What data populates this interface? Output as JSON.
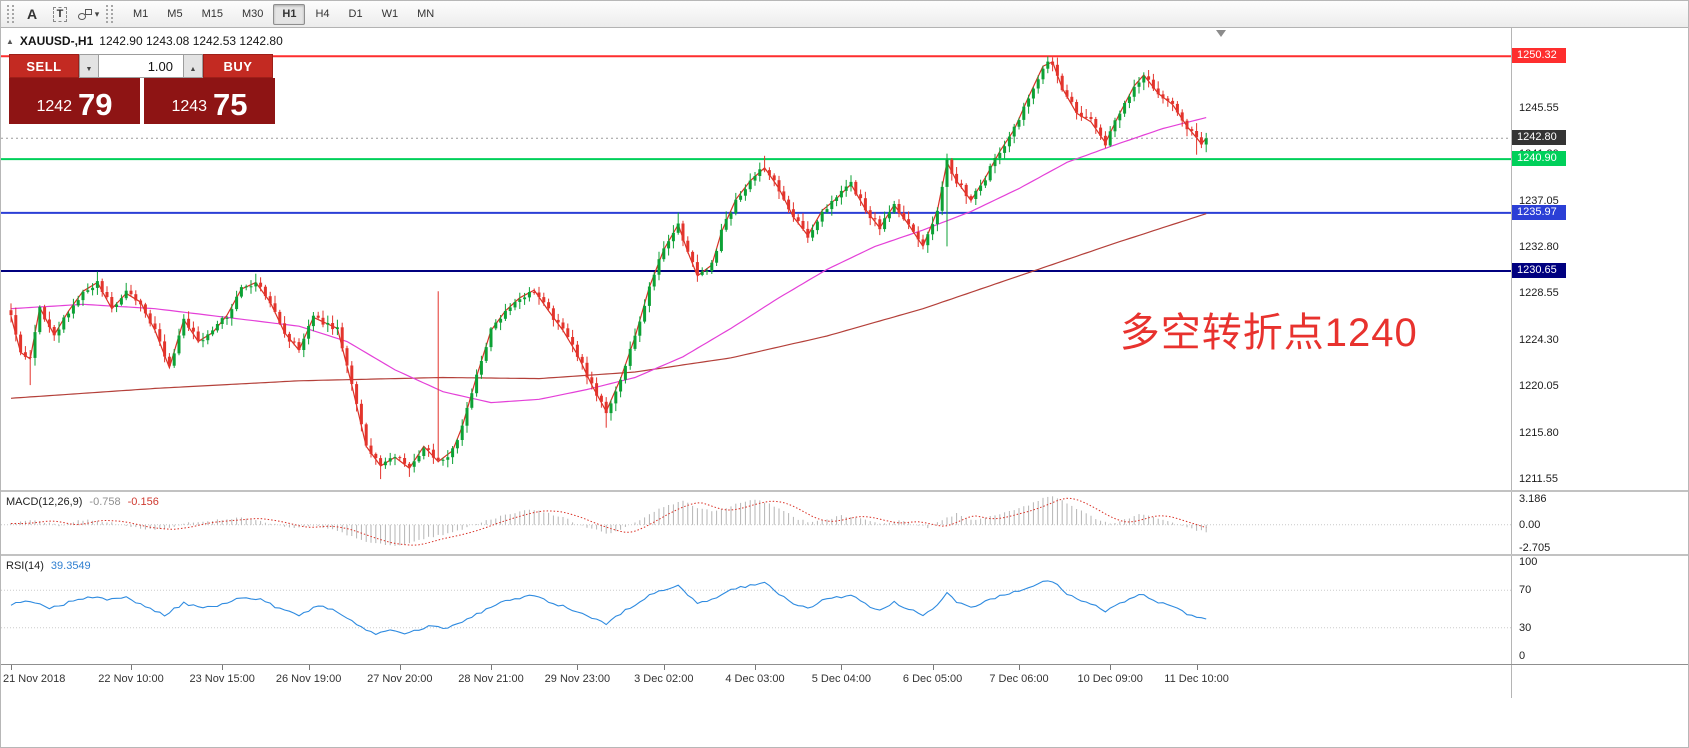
{
  "toolbar": {
    "tools": [
      {
        "name": "toolbar-grip"
      },
      {
        "name": "text-annotation-tool",
        "label": "A"
      },
      {
        "name": "text-label-tool",
        "label": "T"
      },
      {
        "name": "shapes-tool"
      }
    ],
    "timeframes": [
      {
        "label": "M1",
        "active": false
      },
      {
        "label": "M5",
        "active": false
      },
      {
        "label": "M15",
        "active": false
      },
      {
        "label": "M30",
        "active": false
      },
      {
        "label": "H1",
        "active": true
      },
      {
        "label": "H4",
        "active": false
      },
      {
        "label": "D1",
        "active": false
      },
      {
        "label": "W1",
        "active": false
      },
      {
        "label": "MN",
        "active": false
      }
    ]
  },
  "header": {
    "collapse_glyph": "▲",
    "symbol": "XAUUSD-,H1",
    "ohlc": "1242.90 1243.08 1242.53 1242.80"
  },
  "trade_panel": {
    "sell_label": "SELL",
    "buy_label": "BUY",
    "volume": "1.00",
    "bid_main": "1242",
    "bid_pips": "79",
    "ask_main": "1243",
    "ask_pips": "75"
  },
  "chart_data": {
    "type": "candlestick",
    "symbol": "XAUUSD",
    "timeframe": "H1",
    "bars": 250,
    "last_close": 1242.8,
    "ylim": [
      1210.6,
      1252.9
    ],
    "y_axis_labels": [
      "1245.55",
      "1241.30",
      "1237.05",
      "1232.80",
      "1228.55",
      "1224.30",
      "1220.05",
      "1215.80",
      "1211.55"
    ],
    "colors": {
      "up": "#0ca135",
      "down": "#e3342c"
    },
    "close_waypoints": [
      [
        0,
        1226.5
      ],
      [
        2,
        1223.2
      ],
      [
        4,
        1222.6
      ],
      [
        6,
        1227.3
      ],
      [
        9,
        1224.8
      ],
      [
        12,
        1227.0
      ],
      [
        15,
        1228.8
      ],
      [
        18,
        1229.6
      ],
      [
        21,
        1227.2
      ],
      [
        24,
        1228.6
      ],
      [
        27,
        1227.8
      ],
      [
        30,
        1225.2
      ],
      [
        33,
        1221.8
      ],
      [
        36,
        1226.2
      ],
      [
        39,
        1224.2
      ],
      [
        42,
        1225.0
      ],
      [
        45,
        1226.6
      ],
      [
        48,
        1229.0
      ],
      [
        51,
        1229.6
      ],
      [
        54,
        1227.8
      ],
      [
        57,
        1225.0
      ],
      [
        60,
        1223.4
      ],
      [
        63,
        1226.4
      ],
      [
        66,
        1225.8
      ],
      [
        68,
        1225.4
      ],
      [
        71,
        1220.2
      ],
      [
        74,
        1214.6
      ],
      [
        77,
        1212.8
      ],
      [
        80,
        1213.6
      ],
      [
        83,
        1212.6
      ],
      [
        86,
        1214.6
      ],
      [
        89,
        1213.2
      ],
      [
        92,
        1214.2
      ],
      [
        94,
        1216.4
      ],
      [
        97,
        1221.0
      ],
      [
        100,
        1225.2
      ],
      [
        103,
        1227.0
      ],
      [
        106,
        1228.2
      ],
      [
        109,
        1228.9
      ],
      [
        112,
        1227.0
      ],
      [
        115,
        1225.2
      ],
      [
        118,
        1223.0
      ],
      [
        121,
        1220.2
      ],
      [
        124,
        1217.8
      ],
      [
        127,
        1220.8
      ],
      [
        130,
        1224.6
      ],
      [
        133,
        1229.2
      ],
      [
        136,
        1232.6
      ],
      [
        139,
        1234.9
      ],
      [
        141,
        1232.4
      ],
      [
        143,
        1230.2
      ],
      [
        146,
        1231.2
      ],
      [
        148,
        1234.2
      ],
      [
        151,
        1237.2
      ],
      [
        154,
        1238.9
      ],
      [
        157,
        1240.1
      ],
      [
        160,
        1238.2
      ],
      [
        163,
        1235.6
      ],
      [
        166,
        1233.9
      ],
      [
        169,
        1236.2
      ],
      [
        172,
        1237.3
      ],
      [
        175,
        1238.6
      ],
      [
        178,
        1236.3
      ],
      [
        181,
        1234.6
      ],
      [
        184,
        1236.7
      ],
      [
        187,
        1234.9
      ],
      [
        190,
        1232.9
      ],
      [
        193,
        1236.2
      ],
      [
        195,
        1240.6
      ],
      [
        197,
        1238.9
      ],
      [
        200,
        1237.1
      ],
      [
        203,
        1239.2
      ],
      [
        206,
        1241.6
      ],
      [
        209,
        1243.6
      ],
      [
        212,
        1246.6
      ],
      [
        215,
        1249.4
      ],
      [
        217,
        1249.8
      ],
      [
        219,
        1247.4
      ],
      [
        222,
        1245.1
      ],
      [
        225,
        1244.3
      ],
      [
        228,
        1242.4
      ],
      [
        231,
        1245.1
      ],
      [
        234,
        1247.6
      ],
      [
        236,
        1248.6
      ],
      [
        239,
        1246.9
      ],
      [
        242,
        1245.9
      ],
      [
        245,
        1243.9
      ],
      [
        248,
        1242.3
      ],
      [
        249,
        1242.8
      ]
    ],
    "spikes": {
      "4": {
        "l": 1220.2
      },
      "18": {
        "h": 1230.6
      },
      "51": {
        "h": 1230.4
      },
      "77": {
        "l": 1211.6
      },
      "83": {
        "l": 1211.8
      },
      "89": {
        "h": 1228.8
      },
      "124": {
        "l": 1216.3
      },
      "139": {
        "h": 1236.0
      },
      "157": {
        "h": 1241.2
      },
      "195": {
        "h": 1241.4,
        "l": 1232.9
      },
      "216": {
        "h": 1250.3
      },
      "228": {
        "l": 1241.9
      },
      "247": {
        "l": 1241.3
      }
    },
    "moving_averages": [
      {
        "name": "ma-slow-line",
        "color": "#b4403a",
        "waypoints": [
          [
            0,
            1219.0
          ],
          [
            30,
            1219.9
          ],
          [
            60,
            1220.6
          ],
          [
            90,
            1220.9
          ],
          [
            110,
            1220.8
          ],
          [
            130,
            1221.4
          ],
          [
            150,
            1222.7
          ],
          [
            170,
            1224.7
          ],
          [
            190,
            1227.2
          ],
          [
            210,
            1230.2
          ],
          [
            230,
            1233.2
          ],
          [
            249,
            1235.9
          ]
        ]
      },
      {
        "name": "ma-mid-line",
        "color": "#e440d8",
        "waypoints": [
          [
            0,
            1227.2
          ],
          [
            15,
            1227.6
          ],
          [
            30,
            1227.2
          ],
          [
            45,
            1226.4
          ],
          [
            60,
            1225.6
          ],
          [
            70,
            1224.2
          ],
          [
            80,
            1221.6
          ],
          [
            90,
            1219.6
          ],
          [
            100,
            1218.6
          ],
          [
            110,
            1218.9
          ],
          [
            120,
            1219.8
          ],
          [
            130,
            1220.9
          ],
          [
            140,
            1222.8
          ],
          [
            150,
            1225.4
          ],
          [
            160,
            1228.2
          ],
          [
            170,
            1230.8
          ],
          [
            180,
            1232.9
          ],
          [
            190,
            1234.4
          ],
          [
            200,
            1236.1
          ],
          [
            210,
            1238.2
          ],
          [
            220,
            1240.6
          ],
          [
            230,
            1242.2
          ],
          [
            240,
            1243.7
          ],
          [
            249,
            1244.7
          ]
        ]
      },
      {
        "name": "ma-fast-line",
        "color": "#d93025",
        "use_close": true
      }
    ],
    "hlines": [
      {
        "price": 1250.32,
        "label": "1250.32",
        "color": "#fe2e2e"
      },
      {
        "price": 1240.9,
        "label": "1240.90",
        "color": "#00d05a"
      },
      {
        "price": 1235.97,
        "label": "1235.97",
        "color": "#2b3fd6"
      },
      {
        "price": 1230.65,
        "label": "1230.65",
        "color": "#00007f"
      }
    ],
    "bid_line": {
      "price": 1242.8,
      "label": "1242.80",
      "line_color": "#9b9b9b",
      "badge_bg": "#343434"
    },
    "annotation": {
      "text": "多空转折点1240",
      "color": "#e8322e",
      "bar": 231,
      "price": 1226.0
    },
    "shift_marker_bar": 251,
    "time_axis": [
      {
        "label": "21 Nov 2018",
        "bar": 0
      },
      {
        "label": "22 Nov 10:00",
        "bar": 25
      },
      {
        "label": "23 Nov 15:00",
        "bar": 44
      },
      {
        "label": "26 Nov 19:00",
        "bar": 62
      },
      {
        "label": "27 Nov 20:00",
        "bar": 81
      },
      {
        "label": "28 Nov 21:00",
        "bar": 100
      },
      {
        "label": "29 Nov 23:00",
        "bar": 118
      },
      {
        "label": "3 Dec 02:00",
        "bar": 136
      },
      {
        "label": "4 Dec 03:00",
        "bar": 155
      },
      {
        "label": "5 Dec 04:00",
        "bar": 173
      },
      {
        "label": "6 Dec 05:00",
        "bar": 192
      },
      {
        "label": "7 Dec 06:00",
        "bar": 210
      },
      {
        "label": "10 Dec 09:00",
        "bar": 229
      },
      {
        "label": "11 Dec 10:00",
        "bar": 247
      }
    ]
  },
  "macd": {
    "label": "MACD(12,26,9)",
    "value_main": "-0.758",
    "value_signal": "-0.156",
    "axis_labels": [
      "3.186",
      "0.00",
      "-2.705"
    ],
    "axis_values": [
      3.186,
      0,
      -2.705
    ],
    "range": [
      -3.2,
      3.6
    ],
    "hist_color": "#b5b5b5",
    "signal_color": "#d93025",
    "waypoints": [
      [
        0,
        0.15
      ],
      [
        5,
        0.5
      ],
      [
        10,
        -0.1
      ],
      [
        15,
        0.55
      ],
      [
        20,
        0.35
      ],
      [
        25,
        -0.3
      ],
      [
        30,
        -0.55
      ],
      [
        34,
        -0.2
      ],
      [
        38,
        0.3
      ],
      [
        43,
        0.5
      ],
      [
        48,
        0.75
      ],
      [
        53,
        0.3
      ],
      [
        58,
        -0.35
      ],
      [
        63,
        -0.1
      ],
      [
        67,
        -0.5
      ],
      [
        71,
        -1.3
      ],
      [
        76,
        -2.1
      ],
      [
        81,
        -2.3
      ],
      [
        86,
        -1.5
      ],
      [
        90,
        -1.1
      ],
      [
        94,
        -0.5
      ],
      [
        98,
        0.3
      ],
      [
        103,
        1.1
      ],
      [
        107,
        1.6
      ],
      [
        111,
        1.45
      ],
      [
        115,
        0.8
      ],
      [
        119,
        -0.1
      ],
      [
        122,
        -0.6
      ],
      [
        125,
        -1.0
      ],
      [
        128,
        -0.3
      ],
      [
        131,
        0.6
      ],
      [
        134,
        1.5
      ],
      [
        137,
        2.2
      ],
      [
        140,
        2.6
      ],
      [
        143,
        1.8
      ],
      [
        146,
        1.5
      ],
      [
        149,
        1.9
      ],
      [
        152,
        2.4
      ],
      [
        155,
        2.7
      ],
      [
        158,
        2.35
      ],
      [
        161,
        1.5
      ],
      [
        164,
        0.6
      ],
      [
        167,
        0.25
      ],
      [
        170,
        0.6
      ],
      [
        173,
        1.0
      ],
      [
        176,
        0.8
      ],
      [
        179,
        0.35
      ],
      [
        182,
        0.1
      ],
      [
        185,
        0.45
      ],
      [
        188,
        0.05
      ],
      [
        191,
        -0.3
      ],
      [
        194,
        0.5
      ],
      [
        197,
        1.2
      ],
      [
        200,
        0.55
      ],
      [
        203,
        0.75
      ],
      [
        206,
        1.2
      ],
      [
        209,
        1.6
      ],
      [
        212,
        2.2
      ],
      [
        215,
        2.9
      ],
      [
        217,
        3.05
      ],
      [
        220,
        2.4
      ],
      [
        223,
        1.5
      ],
      [
        226,
        0.6
      ],
      [
        229,
        0.15
      ],
      [
        232,
        0.6
      ],
      [
        235,
        1.1
      ],
      [
        238,
        0.9
      ],
      [
        241,
        0.35
      ],
      [
        244,
        -0.15
      ],
      [
        247,
        -0.6
      ],
      [
        249,
        -0.758
      ]
    ]
  },
  "rsi": {
    "label": "RSI(14)",
    "value": "39.3549",
    "line_color": "#2f8be0",
    "levels": [
      70,
      30
    ],
    "axis_labels": [
      "100",
      "70",
      "30",
      "0"
    ],
    "axis_values": [
      100,
      70,
      30,
      0
    ],
    "waypoints": [
      [
        0,
        55
      ],
      [
        4,
        59
      ],
      [
        8,
        50
      ],
      [
        12,
        57
      ],
      [
        16,
        63
      ],
      [
        20,
        60
      ],
      [
        24,
        62
      ],
      [
        28,
        52
      ],
      [
        32,
        44
      ],
      [
        36,
        56
      ],
      [
        40,
        51
      ],
      [
        44,
        55
      ],
      [
        48,
        62
      ],
      [
        52,
        60
      ],
      [
        56,
        50
      ],
      [
        60,
        43
      ],
      [
        64,
        54
      ],
      [
        67,
        50
      ],
      [
        70,
        40
      ],
      [
        73,
        30
      ],
      [
        76,
        24
      ],
      [
        79,
        28
      ],
      [
        82,
        24
      ],
      [
        85,
        28
      ],
      [
        88,
        33
      ],
      [
        91,
        29
      ],
      [
        94,
        36
      ],
      [
        97,
        44
      ],
      [
        100,
        53
      ],
      [
        103,
        58
      ],
      [
        106,
        62
      ],
      [
        109,
        65
      ],
      [
        112,
        58
      ],
      [
        115,
        53
      ],
      [
        118,
        47
      ],
      [
        121,
        40
      ],
      [
        124,
        34
      ],
      [
        127,
        45
      ],
      [
        130,
        55
      ],
      [
        133,
        64
      ],
      [
        136,
        70
      ],
      [
        139,
        76
      ],
      [
        141,
        64
      ],
      [
        143,
        56
      ],
      [
        146,
        60
      ],
      [
        149,
        68
      ],
      [
        152,
        73
      ],
      [
        155,
        76
      ],
      [
        157,
        78
      ],
      [
        160,
        66
      ],
      [
        163,
        56
      ],
      [
        166,
        50
      ],
      [
        169,
        59
      ],
      [
        172,
        62
      ],
      [
        175,
        65
      ],
      [
        178,
        55
      ],
      [
        181,
        48
      ],
      [
        184,
        57
      ],
      [
        187,
        50
      ],
      [
        190,
        43
      ],
      [
        193,
        54
      ],
      [
        195,
        67
      ],
      [
        197,
        58
      ],
      [
        200,
        52
      ],
      [
        203,
        58
      ],
      [
        206,
        64
      ],
      [
        209,
        68
      ],
      [
        212,
        73
      ],
      [
        215,
        79
      ],
      [
        217,
        80
      ],
      [
        219,
        70
      ],
      [
        222,
        60
      ],
      [
        225,
        56
      ],
      [
        228,
        47
      ],
      [
        231,
        56
      ],
      [
        234,
        63
      ],
      [
        236,
        66
      ],
      [
        239,
        57
      ],
      [
        242,
        54
      ],
      [
        245,
        45
      ],
      [
        248,
        40
      ],
      [
        249,
        39.35
      ]
    ]
  }
}
